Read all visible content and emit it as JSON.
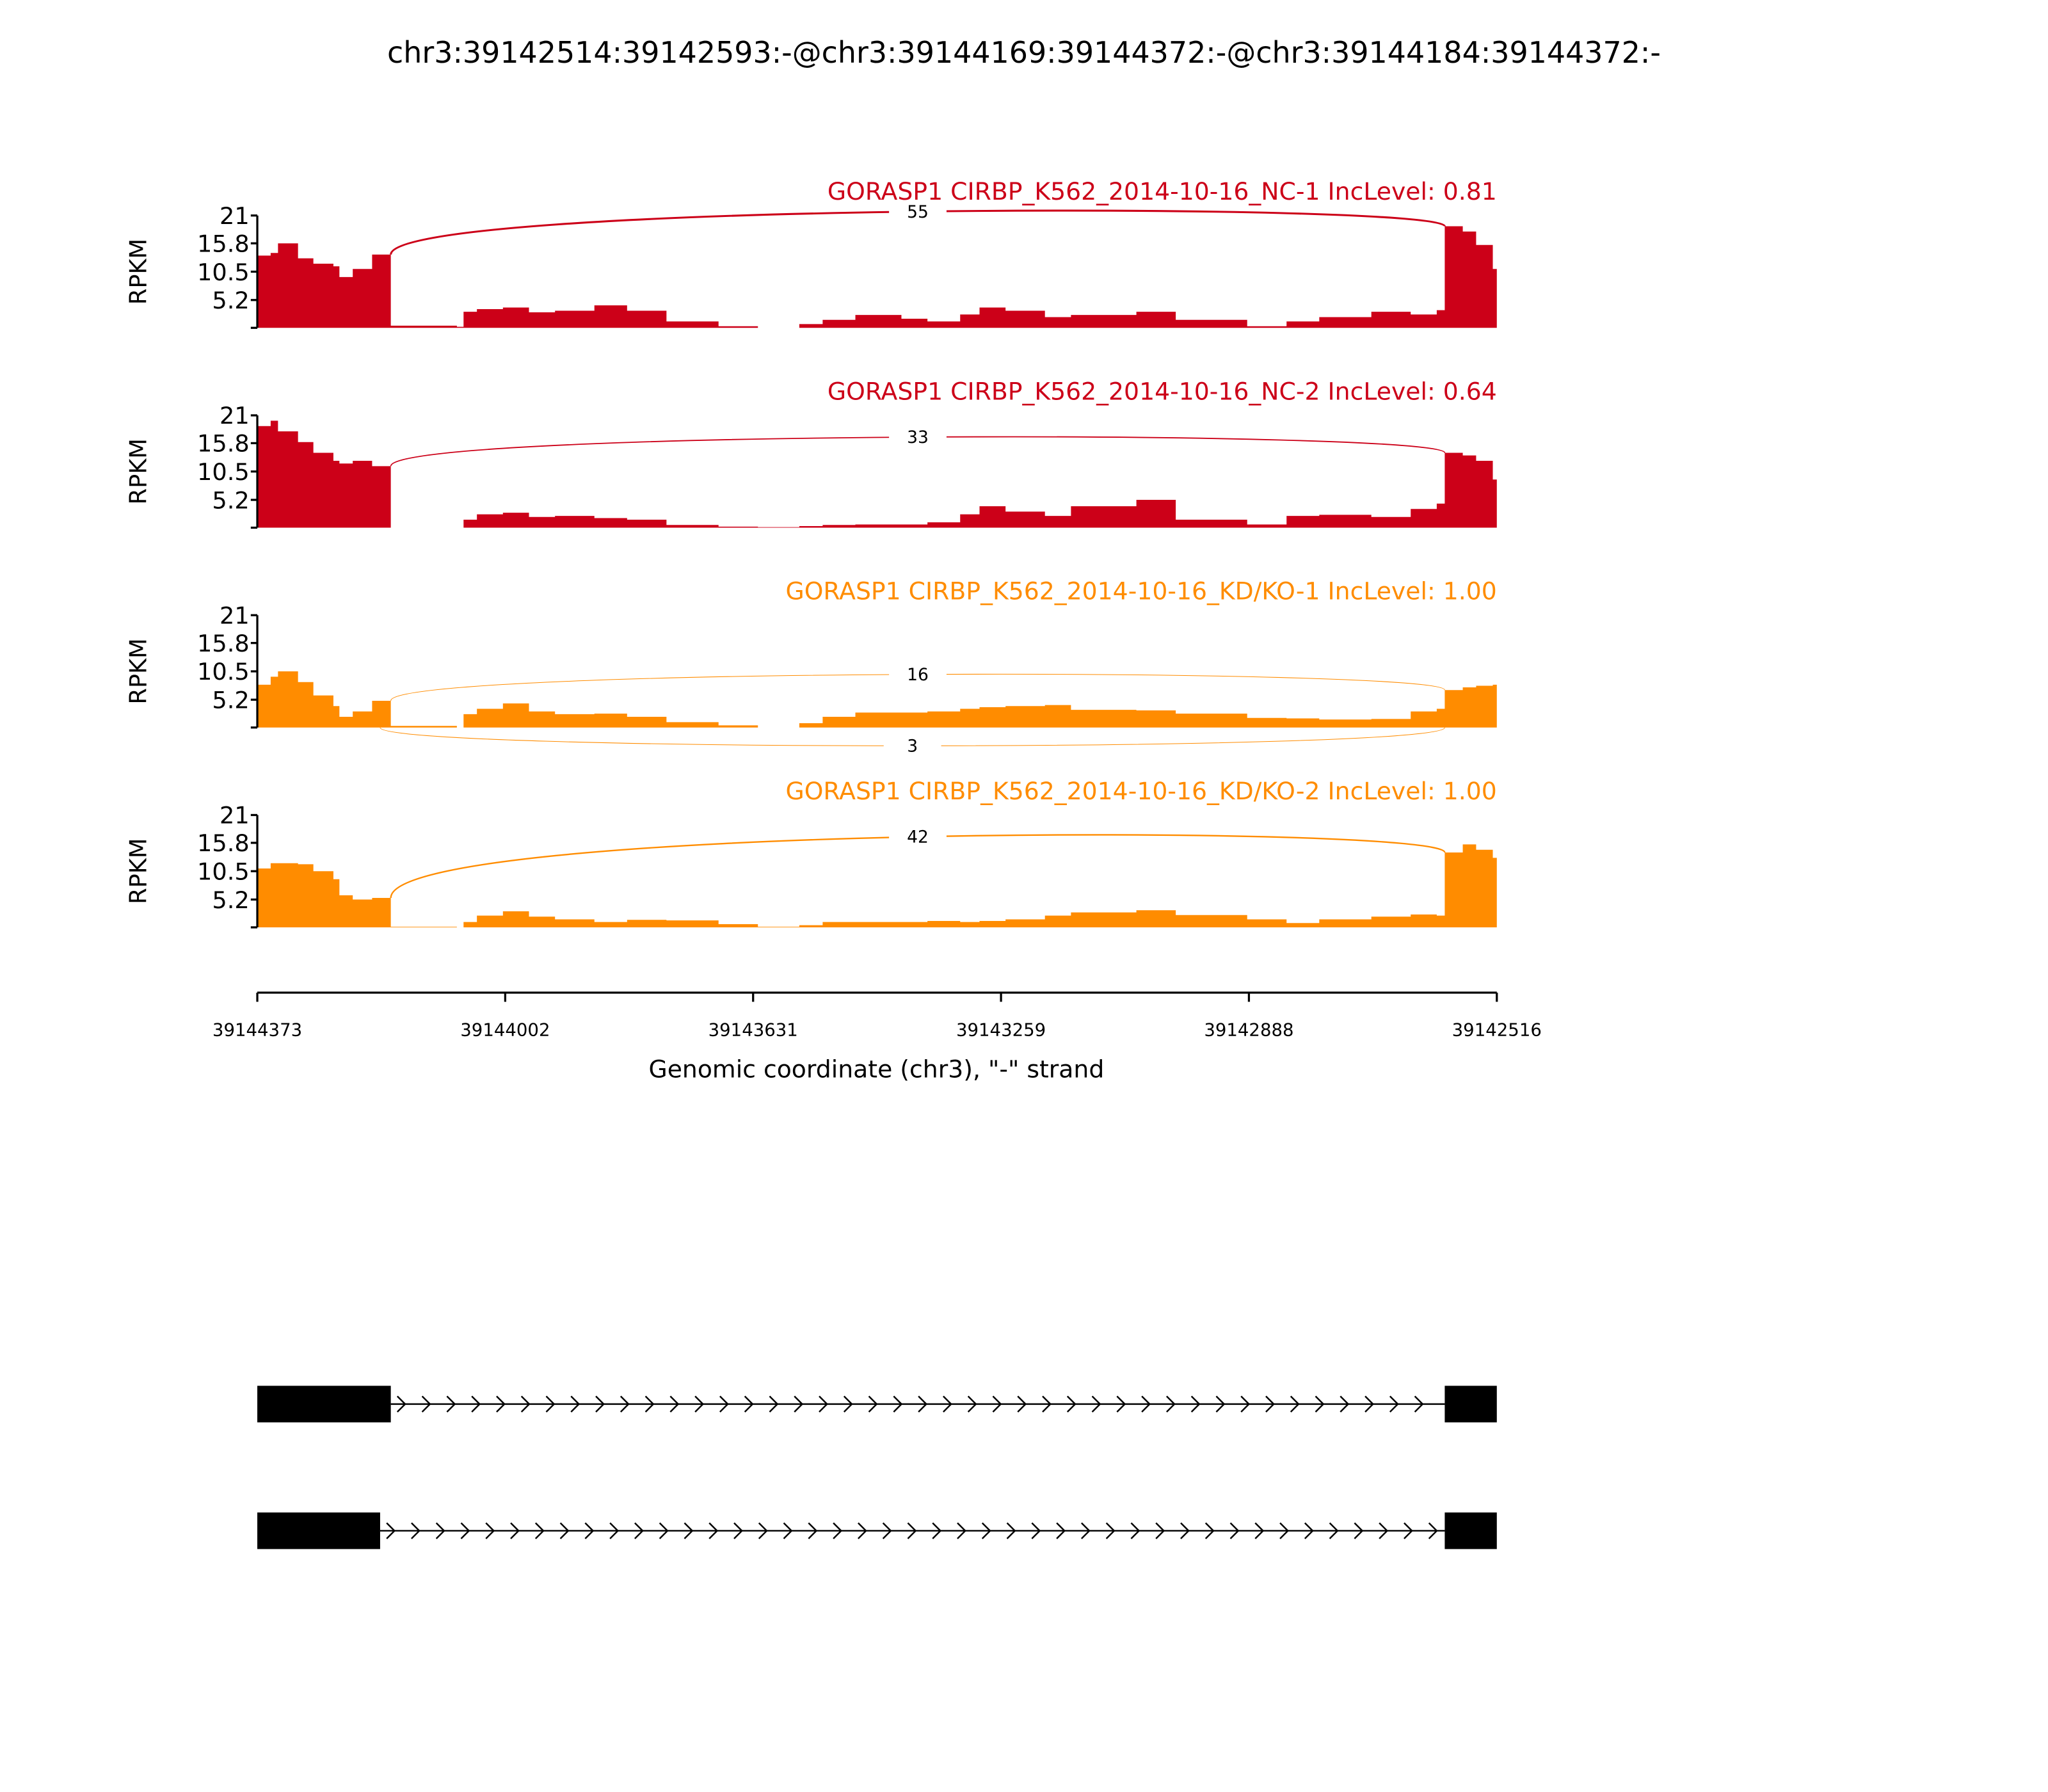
{
  "chart_data": {
    "type": "area",
    "title": "chr3:39142514:39142593:-@chr3:39144169:39144372:-@chr3:39144184:39144372:-",
    "xlabel": "Genomic coordinate (chr3), \"-\" strand",
    "ylabel": "RPKM",
    "x_range_bp_offset": [
      0,
      1857
    ],
    "x_ticks": [
      "39144373",
      "39144002",
      "39143631",
      "39143259",
      "39142888",
      "39142516"
    ],
    "ylim": [
      0,
      21
    ],
    "y_ticks": [
      0,
      5.2,
      10.5,
      15.8,
      21
    ],
    "y_tick_labels": [
      "",
      "5.2",
      "10.5",
      "15.8",
      "21"
    ],
    "coverage_breaks_bp_offset": [
      0,
      20,
      31,
      61,
      84,
      114,
      123,
      143,
      172,
      200,
      299,
      309,
      329,
      368,
      407,
      446,
      505,
      554,
      613,
      691,
      750,
      812,
      847,
      896,
      965,
      1004,
      1053,
      1082,
      1121,
      1180,
      1219,
      1317,
      1376,
      1483,
      1542,
      1591,
      1669,
      1728,
      1767,
      1779,
      1806,
      1826,
      1851,
      1857
    ],
    "series": [
      {
        "name": "GORASP1 CIRBP_K562_2014-10-16_NC-1 IncLevel: 0.81",
        "color": "#cc0018",
        "values": [
          13.5,
          14,
          15.8,
          13,
          12,
          11.5,
          9.5,
          11,
          13.7,
          0.4,
          0.2,
          3,
          3.5,
          3.8,
          2.9,
          3.2,
          4.2,
          3.2,
          1.2,
          0.3,
          0,
          0.7,
          1.5,
          2.4,
          1.7,
          1.2,
          2.5,
          3.8,
          3.2,
          2,
          2.4,
          3,
          1.5,
          0.3,
          1.2,
          2,
          3,
          2.5,
          3.3,
          19,
          18,
          15.5,
          11
        ],
        "junctions": [
          {
            "label": "55",
            "count": 55,
            "start": 200,
            "end": 1779,
            "side": "above"
          }
        ]
      },
      {
        "name": "GORASP1 CIRBP_K562_2014-10-16_NC-2 IncLevel: 0.64",
        "color": "#cc0018",
        "values": [
          19,
          20,
          18,
          16,
          14,
          12.5,
          12,
          12.5,
          11.5,
          0,
          0,
          1.5,
          2.5,
          2.8,
          2,
          2.2,
          1.8,
          1.5,
          0.5,
          0.2,
          0.1,
          0.3,
          0.5,
          0.6,
          0.6,
          1,
          2.5,
          4,
          3,
          2.2,
          4,
          5.2,
          1.5,
          0.6,
          2.2,
          2.4,
          2,
          3.5,
          4.5,
          14,
          13.5,
          12.5,
          9
        ],
        "junctions": [
          {
            "label": "33",
            "count": 33,
            "start": 200,
            "end": 1779,
            "side": "above"
          }
        ]
      },
      {
        "name": "GORASP1 CIRBP_K562_2014-10-16_KD/KO-1 IncLevel: 1.00",
        "color": "#ff8c00",
        "values": [
          8,
          9.5,
          10.5,
          8.5,
          6,
          4,
          2,
          3,
          5,
          0.3,
          0,
          2.5,
          3.5,
          4.5,
          3,
          2.5,
          2.6,
          2,
          1,
          0.4,
          0,
          0.8,
          2,
          2.8,
          2.8,
          3,
          3.5,
          3.8,
          4,
          4.2,
          3.3,
          3.2,
          2.6,
          1.8,
          1.7,
          1.5,
          1.6,
          3,
          3.5,
          7,
          7.5,
          7.8,
          8
        ],
        "junctions": [
          {
            "label": "16",
            "count": 16,
            "start": 200,
            "end": 1779,
            "side": "above"
          },
          {
            "label": "3",
            "count": 3,
            "start": 184,
            "end": 1779,
            "side": "below"
          }
        ]
      },
      {
        "name": "GORASP1 CIRBP_K562_2014-10-16_KD/KO-2 IncLevel: 1.00",
        "color": "#ff8c00",
        "values": [
          11,
          12,
          12,
          11.8,
          10.5,
          9,
          6,
          5.2,
          5.5,
          0.1,
          0,
          1,
          2.2,
          3,
          2,
          1.5,
          1,
          1.4,
          1.3,
          0.6,
          0.1,
          0.4,
          1,
          1,
          1,
          1.2,
          1,
          1.2,
          1.5,
          2.2,
          2.8,
          3.2,
          2.3,
          1.5,
          0.8,
          1.5,
          2,
          2.4,
          2.2,
          14,
          15.5,
          14.5,
          13
        ],
        "junctions": [
          {
            "label": "42",
            "count": 42,
            "start": 200,
            "end": 1779,
            "side": "above"
          }
        ]
      }
    ],
    "isoforms": [
      {
        "exons": [
          [
            0,
            200
          ],
          [
            1779,
            1857
          ]
        ]
      },
      {
        "exons": [
          [
            0,
            184
          ],
          [
            1779,
            1857
          ]
        ]
      }
    ]
  }
}
